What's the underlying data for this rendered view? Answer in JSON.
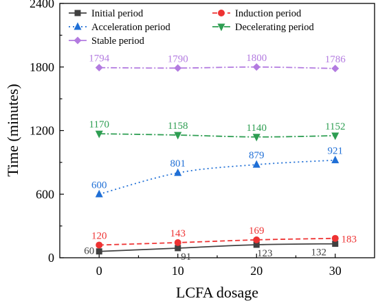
{
  "chart_data": {
    "type": "line",
    "xlabel": "LCFA dosage",
    "ylabel": "Time (minutes)",
    "x": [
      0,
      10,
      20,
      30
    ],
    "x_ticks": [
      "0",
      "10",
      "20",
      "30"
    ],
    "xlim": [
      -5,
      35
    ],
    "ylim": [
      0,
      2400
    ],
    "y_ticks": [
      "0",
      "600",
      "1200",
      "1800",
      "2400"
    ],
    "legend_position": "top",
    "series": [
      {
        "name": "Initial period",
        "values": [
          60,
          91,
          123,
          132
        ],
        "labels": [
          "60",
          "91",
          "123",
          "132"
        ],
        "color": "#404040",
        "marker": "square",
        "dash": "solid",
        "label_side": "below"
      },
      {
        "name": "Induction period",
        "values": [
          120,
          143,
          169,
          183
        ],
        "labels": [
          "120",
          "143",
          "169",
          "183"
        ],
        "color": "#ee3333",
        "marker": "circle",
        "dash": "dashed",
        "label_side": "above"
      },
      {
        "name": "Acceleration period",
        "values": [
          600,
          801,
          879,
          921
        ],
        "labels": [
          "600",
          "801",
          "879",
          "921"
        ],
        "color": "#1f6fd6",
        "marker": "triangle-up",
        "dash": "dotted",
        "label_side": "above"
      },
      {
        "name": "Decelerating period",
        "values": [
          1170,
          1158,
          1140,
          1152
        ],
        "labels": [
          "1170",
          "1158",
          "1140",
          "1152"
        ],
        "color": "#2e9e52",
        "marker": "triangle-down",
        "dash": "dashdot",
        "label_side": "above"
      },
      {
        "name": "Stable period",
        "values": [
          1794,
          1790,
          1800,
          1786
        ],
        "labels": [
          "1794",
          "1790",
          "1800",
          "1786"
        ],
        "color": "#b37be0",
        "marker": "diamond",
        "dash": "dashdot",
        "label_side": "above"
      }
    ]
  }
}
